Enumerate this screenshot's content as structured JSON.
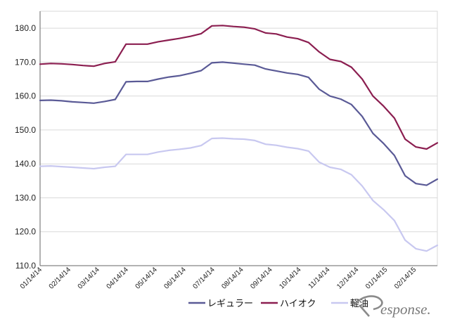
{
  "chart_data": {
    "type": "line",
    "title": "",
    "xlabel": "",
    "ylabel": "",
    "ylim": [
      110,
      185
    ],
    "yticks": [
      "110.0",
      "120.0",
      "130.0",
      "140.0",
      "150.0",
      "160.0",
      "170.0",
      "180.0"
    ],
    "grid": "horizontal",
    "legend_position": "bottom-right",
    "x_labels": [
      "01/14/14",
      "02/14/14",
      "03/14/14",
      "04/14/14",
      "05/14/14",
      "06/14/14",
      "07/14/14",
      "08/14/14",
      "09/14/14",
      "10/14/14",
      "11/14/14",
      "12/14/14",
      "01/14/15",
      "02/14/15"
    ],
    "series": [
      {
        "name": "レギュラー",
        "color": "#5a5a96",
        "values": [
          158.7,
          158.8,
          158.6,
          158.3,
          158.1,
          157.9,
          158.4,
          159.0,
          164.2,
          164.3,
          164.3,
          165.0,
          165.6,
          166.0,
          166.7,
          167.5,
          169.8,
          170.0,
          169.7,
          169.4,
          169.1,
          168.0,
          167.4,
          166.8,
          166.4,
          165.5,
          162.0,
          160.0,
          159.1,
          157.5,
          154.0,
          149.0,
          146.0,
          142.5,
          136.5,
          134.2,
          133.7,
          135.5
        ]
      },
      {
        "name": "ハイオク",
        "color": "#8b1e50",
        "values": [
          169.4,
          169.6,
          169.5,
          169.3,
          169.0,
          168.8,
          169.6,
          170.1,
          175.3,
          175.3,
          175.3,
          176.0,
          176.5,
          177.0,
          177.6,
          178.4,
          180.7,
          180.8,
          180.5,
          180.3,
          179.8,
          178.6,
          178.3,
          177.4,
          176.9,
          175.8,
          173.0,
          170.8,
          170.2,
          168.5,
          165.0,
          160.0,
          157.0,
          153.5,
          147.3,
          145.0,
          144.4,
          146.2
        ]
      },
      {
        "name": "軽油",
        "color": "#c8c8f0",
        "values": [
          139.3,
          139.4,
          139.2,
          139.0,
          138.8,
          138.6,
          139.0,
          139.3,
          142.8,
          142.8,
          142.8,
          143.5,
          144.0,
          144.3,
          144.7,
          145.4,
          147.5,
          147.6,
          147.4,
          147.3,
          146.9,
          145.8,
          145.5,
          144.9,
          144.5,
          143.8,
          140.5,
          139.0,
          138.4,
          136.8,
          133.5,
          129.2,
          126.5,
          123.3,
          117.5,
          115.0,
          114.3,
          116.0
        ]
      }
    ]
  },
  "watermark": {
    "prefix": "R",
    "text": "esponse."
  }
}
